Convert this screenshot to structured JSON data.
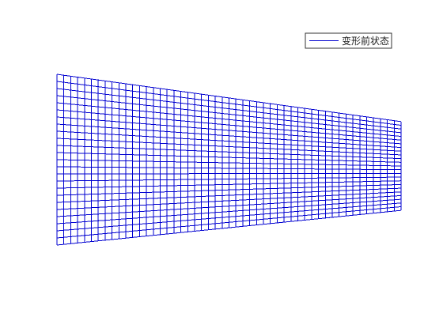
{
  "figure": {
    "type": "mesh",
    "legend": {
      "label": "变形前状态",
      "placement": "top-right"
    },
    "colors": {
      "mesh": "#0000d0",
      "legend_border": "#333333",
      "background": "#ffffff"
    },
    "mesh_data": {
      "columns": 50,
      "rows": 24,
      "shape": "trapezoid",
      "left_edge_height": 1.0,
      "right_edge_height": 0.52
    }
  }
}
